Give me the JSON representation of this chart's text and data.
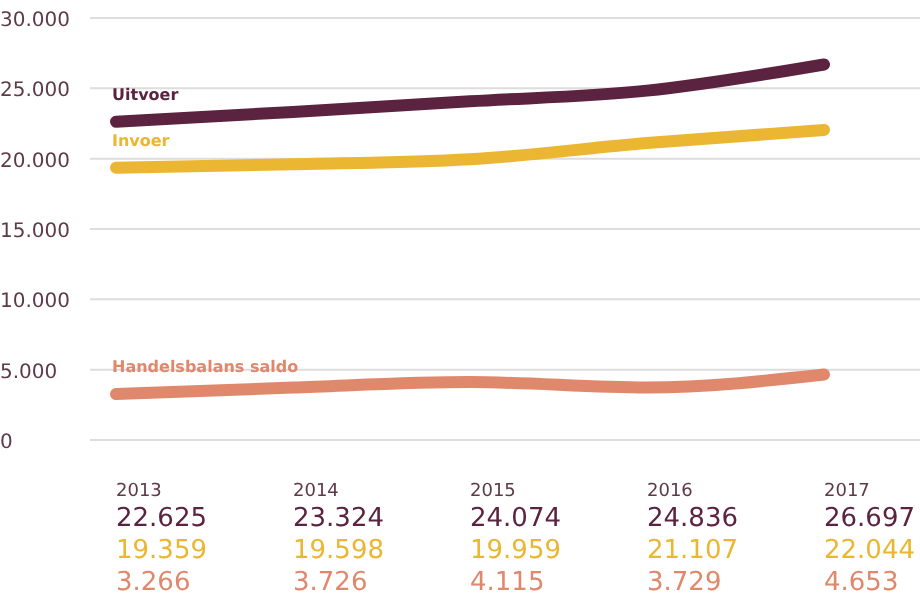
{
  "chart_data": {
    "type": "line",
    "categories": [
      "2013",
      "2014",
      "2015",
      "2016",
      "2017"
    ],
    "series": [
      {
        "name": "Uitvoer",
        "color": "#5c2340",
        "values": [
          22625,
          23324,
          24074,
          24836,
          26697
        ],
        "value_labels": [
          "22.625",
          "23.324",
          "24.074",
          "24.836",
          "26.697"
        ]
      },
      {
        "name": "Invoer",
        "color": "#ebb631",
        "values": [
          19359,
          19598,
          19959,
          21107,
          22044
        ],
        "value_labels": [
          "19.359",
          "19.598",
          "19.959",
          "21.107",
          "22.044"
        ]
      },
      {
        "name": "Handelsbalans saldo",
        "color": "#e0886b",
        "values": [
          3266,
          3726,
          4115,
          3729,
          4653
        ],
        "value_labels": [
          "3.266",
          "3.726",
          "4.115",
          "3.729",
          "4.653"
        ]
      }
    ],
    "ylim": [
      0,
      30000
    ],
    "yticks": [
      {
        "value": 0,
        "label": "0"
      },
      {
        "value": 5000,
        "label": "5.000"
      },
      {
        "value": 10000,
        "label": "10.000"
      },
      {
        "value": 15000,
        "label": "15.000"
      },
      {
        "value": 20000,
        "label": "20.000"
      },
      {
        "value": 25000,
        "label": "25.000"
      },
      {
        "value": 30000,
        "label": "30.000"
      }
    ],
    "grid": "y",
    "legend": false,
    "marker": "none",
    "line_style": "solid"
  }
}
